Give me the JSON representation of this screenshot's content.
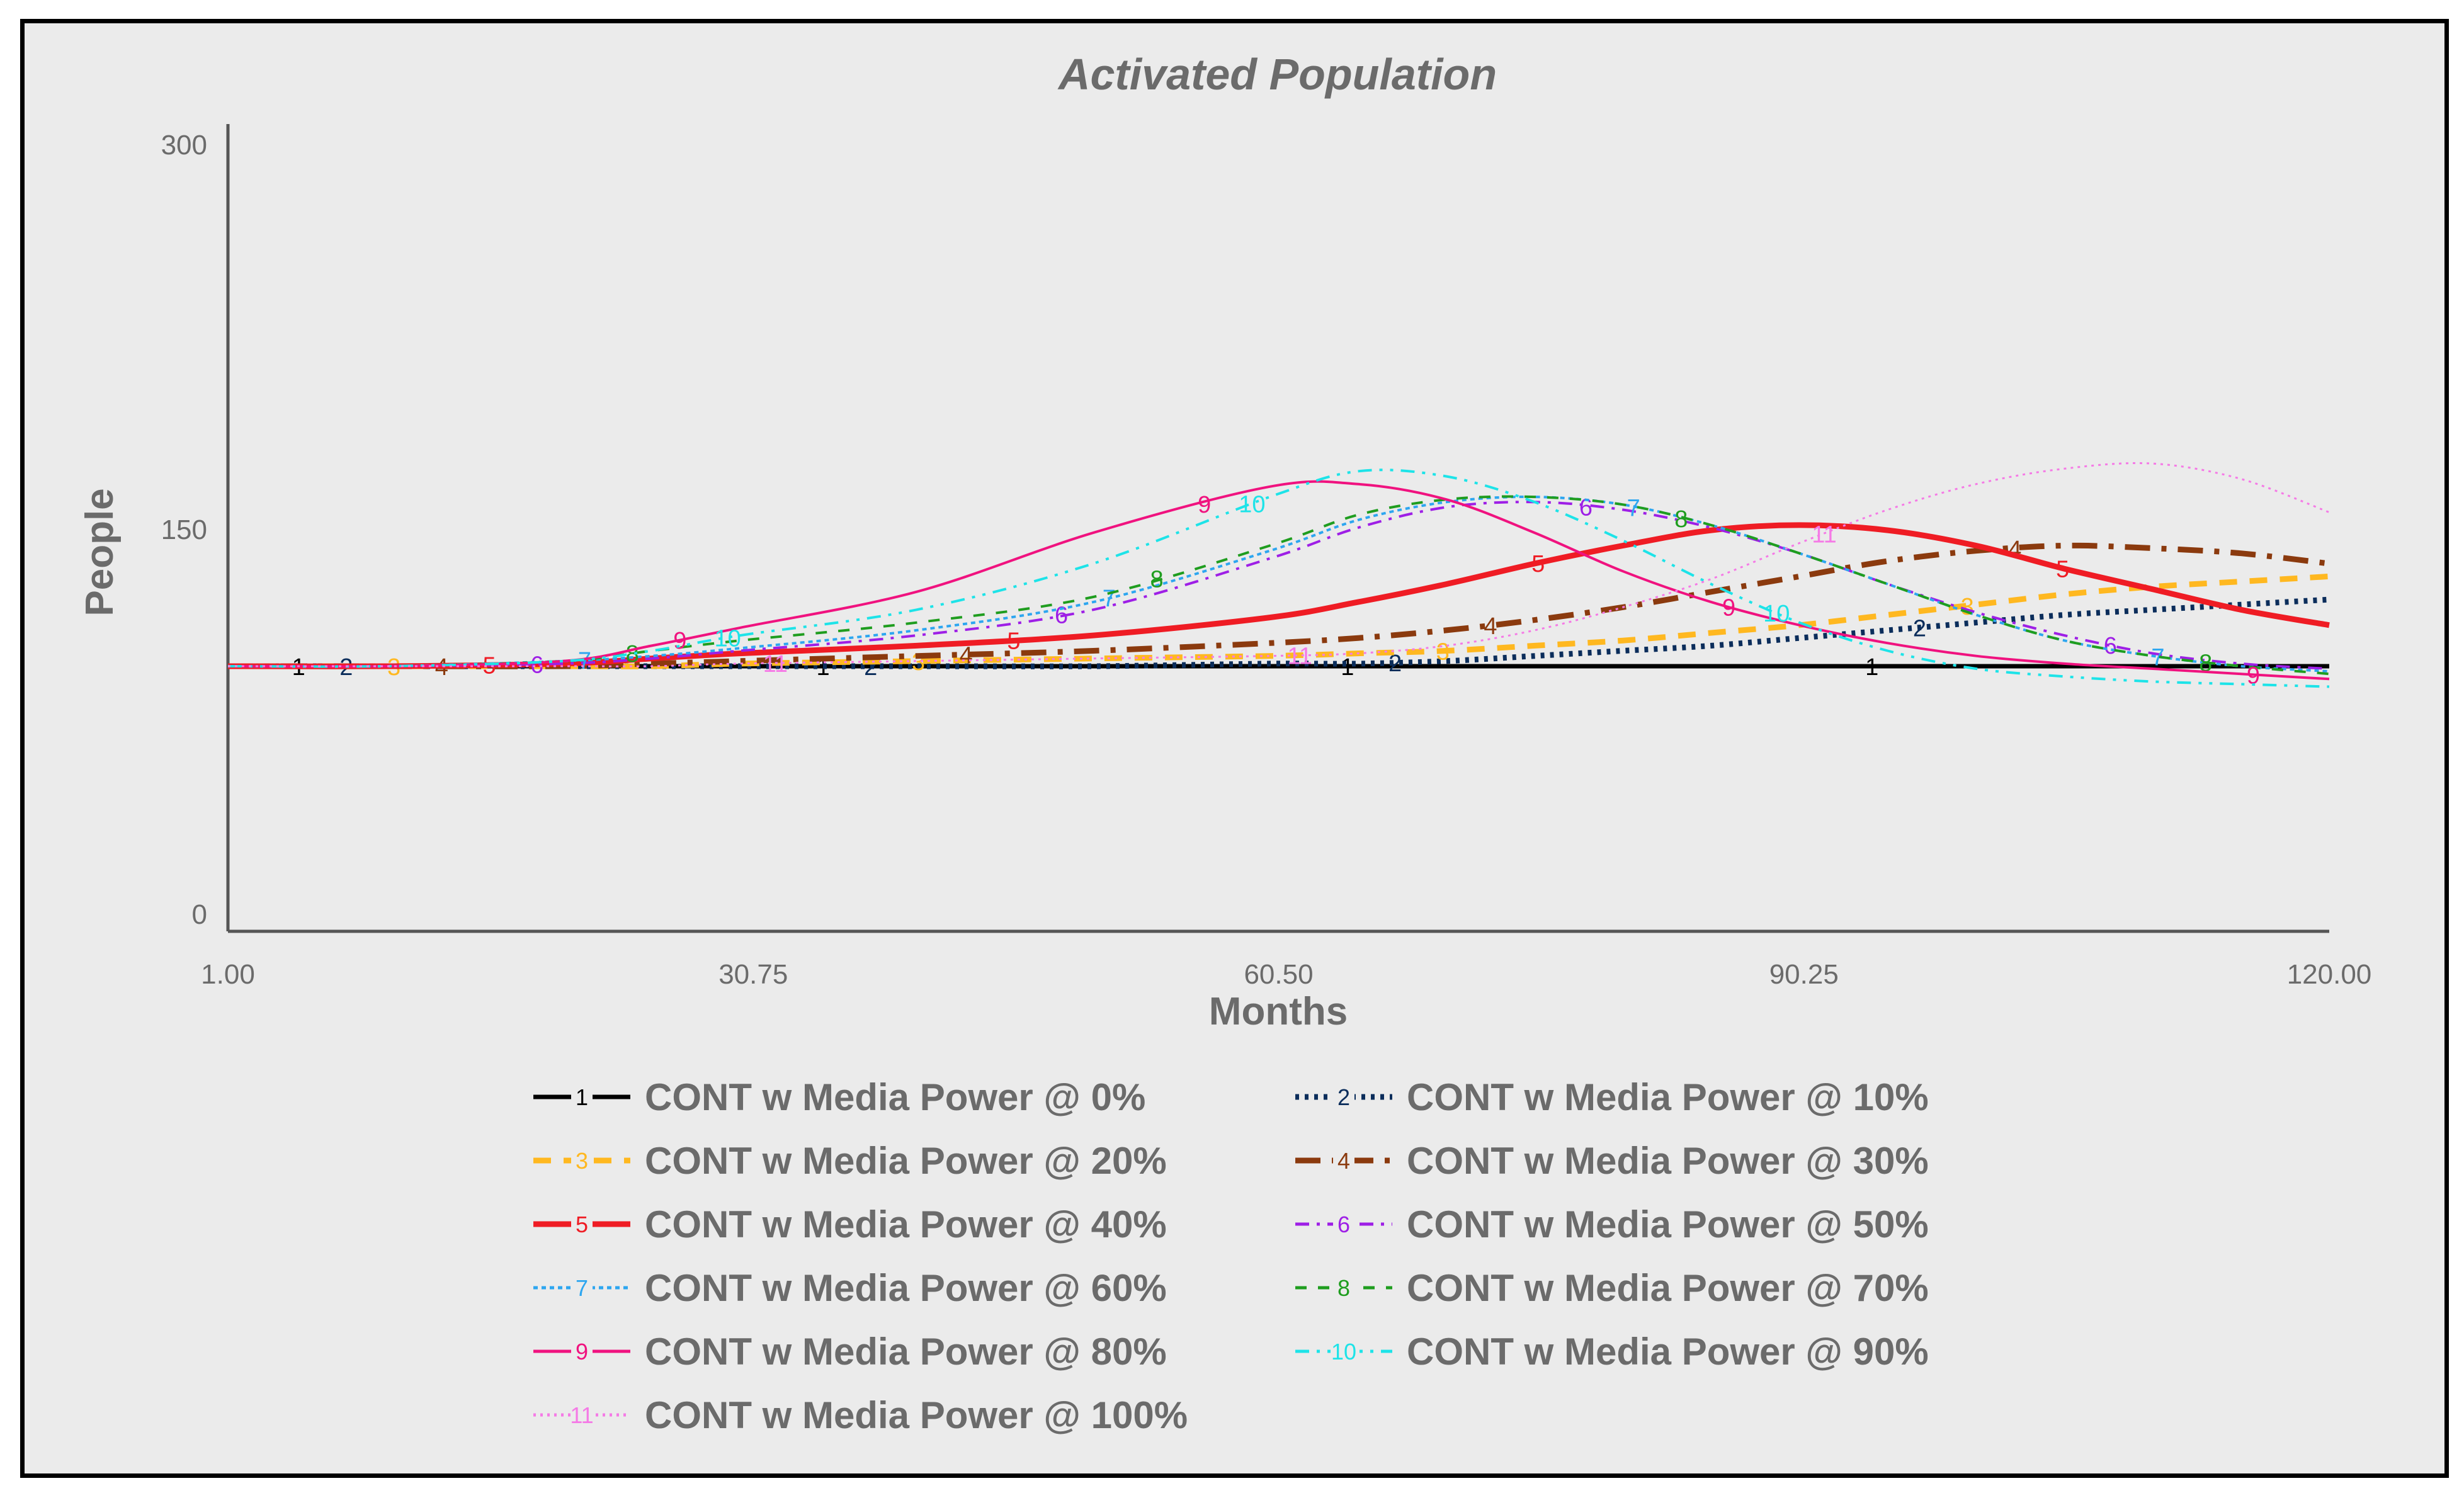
{
  "chart_data": {
    "type": "line",
    "title": "Activated Population",
    "xlabel": "Months",
    "ylabel": "People",
    "xlim": [
      1,
      120
    ],
    "ylim": [
      0,
      300
    ],
    "xticks": [
      "1.00",
      "30.75",
      "60.50",
      "90.25",
      "120.00"
    ],
    "yticks": [
      "0",
      "150",
      "300"
    ],
    "x": [
      1,
      10,
      20,
      25,
      30,
      40,
      50,
      60,
      65,
      70,
      75,
      80,
      85,
      90,
      95,
      100,
      105,
      110,
      115,
      120
    ],
    "series": [
      {
        "name": "CONT w Media Power @ 0%",
        "marker": "1",
        "color": "#000000",
        "values": [
          96,
          96,
          96,
          96,
          96,
          96,
          96,
          96,
          96,
          96,
          96,
          96,
          96,
          96,
          96,
          96,
          96,
          96,
          96,
          96
        ]
      },
      {
        "name": "CONT w Media Power @ 10%",
        "marker": "2",
        "color": "#0b2d5b",
        "values": [
          96,
          96,
          96,
          96,
          96,
          96,
          96,
          97,
          97,
          98,
          100,
          102,
          104,
          107,
          110,
          113,
          116,
          118,
          120,
          122
        ]
      },
      {
        "name": "CONT w Media Power @ 20%",
        "marker": "3",
        "color": "#ffb820",
        "values": [
          96,
          96,
          96,
          96,
          97,
          98,
          99,
          100,
          101,
          102,
          104,
          106,
          109,
          112,
          116,
          120,
          124,
          127,
          129,
          131
        ]
      },
      {
        "name": "CONT w Media Power @ 30%",
        "marker": "4",
        "color": "#8b3a0e",
        "values": [
          96,
          96,
          96,
          97,
          98,
          100,
          102,
          105,
          107,
          110,
          114,
          119,
          125,
          131,
          137,
          141,
          143,
          142,
          140,
          136
        ]
      },
      {
        "name": "CONT w Media Power @ 40%",
        "marker": "5",
        "color": "#ef1c24",
        "values": [
          96,
          96,
          97,
          99,
          101,
          104,
          108,
          115,
          121,
          128,
          136,
          143,
          149,
          151,
          149,
          143,
          134,
          126,
          118,
          112
        ]
      },
      {
        "name": "CONT w Media Power @ 50%",
        "marker": "6",
        "color": "#9e1fe6",
        "values": [
          96,
          96,
          97,
          99,
          102,
          108,
          118,
          138,
          150,
          158,
          160,
          157,
          150,
          140,
          128,
          117,
          108,
          101,
          97,
          95
        ]
      },
      {
        "name": "CONT w Media Power @ 60%",
        "marker": "7",
        "color": "#2da6f0",
        "values": [
          96,
          96,
          98,
          100,
          103,
          110,
          121,
          141,
          153,
          160,
          162,
          159,
          151,
          140,
          128,
          116,
          106,
          100,
          96,
          94
        ]
      },
      {
        "name": "CONT w Media Power @ 70%",
        "marker": "8",
        "color": "#1f9d1f",
        "values": [
          96,
          96,
          98,
          102,
          106,
          113,
          123,
          143,
          155,
          161,
          162,
          159,
          151,
          140,
          128,
          116,
          106,
          100,
          96,
          93
        ]
      },
      {
        "name": "CONT w Media Power @ 80%",
        "marker": "9",
        "color": "#f0127f",
        "values": [
          96,
          96,
          98,
          104,
          111,
          125,
          148,
          166,
          167,
          161,
          148,
          133,
          121,
          112,
          105,
          100,
          97,
          95,
          93,
          91
        ]
      },
      {
        "name": "CONT w Media Power @ 90%",
        "marker": "10",
        "color": "#1de3e8",
        "values": [
          96,
          96,
          98,
          102,
          108,
          118,
          136,
          162,
          172,
          170,
          160,
          145,
          128,
          113,
          102,
          95,
          92,
          90,
          89,
          88
        ]
      },
      {
        "name": "CONT w Media Power @ 100%",
        "marker": "11",
        "color": "#f57ae6",
        "values": [
          96,
          96,
          96,
          96,
          97,
          98,
          99,
          100,
          101,
          104,
          110,
          119,
          130,
          144,
          157,
          167,
          173,
          175,
          169,
          156
        ]
      }
    ]
  }
}
